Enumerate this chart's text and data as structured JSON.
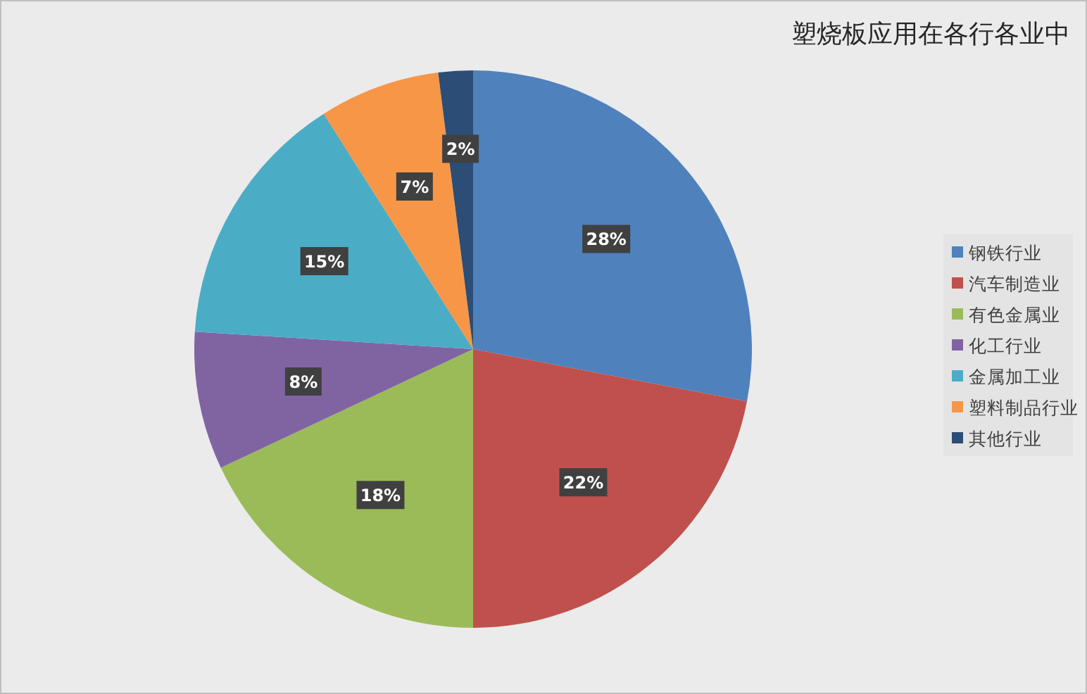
{
  "chart_data": {
    "type": "pie",
    "title": "塑烧板应用在各行各业中",
    "categories": [
      "钢铁行业",
      "汽车制造业",
      "有色金属业",
      "化工行业",
      "金属加工业",
      "塑料制品行业",
      "其他行业"
    ],
    "values": [
      28,
      22,
      18,
      8,
      15,
      7,
      2
    ],
    "colors": [
      "#4f81bd",
      "#c0504d",
      "#9bbb59",
      "#8064a2",
      "#4bacc6",
      "#f79646",
      "#2c4d75"
    ],
    "value_labels": [
      "28%",
      "22%",
      "18%",
      "8%",
      "15%",
      "7%",
      "2%"
    ],
    "legend": "right"
  }
}
